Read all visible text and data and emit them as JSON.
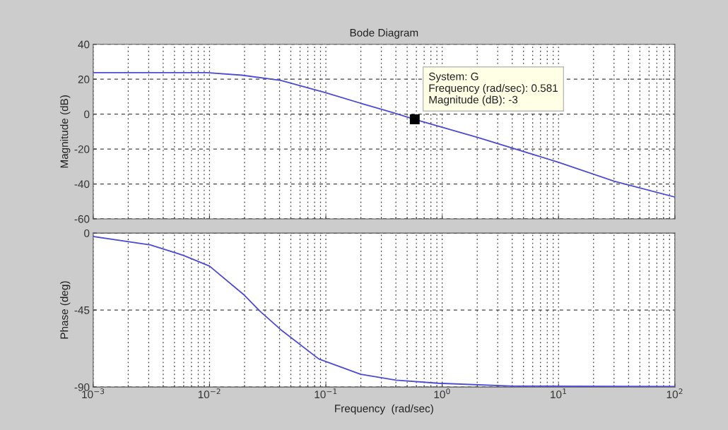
{
  "chart_data": [
    {
      "type": "line",
      "title": "Bode Diagram",
      "ylabel": "Magnitude (dB)",
      "log": "x",
      "grid": true,
      "tick_labels": "y",
      "line_style": "solid",
      "marker": "none",
      "xlim": [
        0.001,
        100
      ],
      "ylim": [
        -60,
        40
      ],
      "yticks": [
        -60,
        -40,
        -20,
        0,
        20,
        40
      ],
      "series": [
        {
          "color": "#4b4bd6",
          "x": [
            0.001,
            0.0095,
            0.019,
            0.041,
            0.1,
            0.2,
            0.38,
            0.581,
            2.04,
            10,
            30,
            100
          ],
          "values": [
            23.8,
            23.8,
            22.3,
            19.3,
            12.2,
            6.2,
            0.8,
            -3,
            -13.4,
            -27.6,
            -38.4,
            -47.5
          ]
        }
      ],
      "annotations": [
        {
          "text": "System: G\nFrequency (rad/sec): 0.581\nMagnitude (dB): -3",
          "x": 0.581,
          "y": -3
        }
      ]
    },
    {
      "type": "line",
      "xlabel": "Frequency  (rad/sec)",
      "ylabel": "Phase (deg)",
      "log": "x",
      "grid": true,
      "line_style": "solid",
      "marker": "none",
      "xlim": [
        0.001,
        100
      ],
      "xticks": [
        {
          "value": 0.001,
          "label": "10$^{−3}$"
        },
        {
          "value": 0.01,
          "label": "10$^{−2}$"
        },
        {
          "value": 0.1,
          "label": "10$^{−1}$"
        },
        {
          "value": 1,
          "label": "10$^{0}$"
        },
        {
          "value": 10,
          "label": "10$^{1}$"
        },
        {
          "value": 100,
          "label": "10$^{2}$"
        }
      ],
      "ylim": [
        -90,
        0
      ],
      "yticks": [
        -90,
        -45,
        0
      ],
      "series": [
        {
          "color": "#4b4bd6",
          "x": [
            0.001,
            0.0031,
            0.006,
            0.01,
            0.02,
            0.027,
            0.041,
            0.087,
            0.2,
            0.4,
            0.92,
            4.1,
            100
          ],
          "values": [
            -2,
            -6.9,
            -13.1,
            -19.3,
            -36.4,
            -45.5,
            -56.5,
            -73.6,
            -82.6,
            -86,
            -87.8,
            -89.5,
            -89.7
          ]
        }
      ]
    }
  ]
}
